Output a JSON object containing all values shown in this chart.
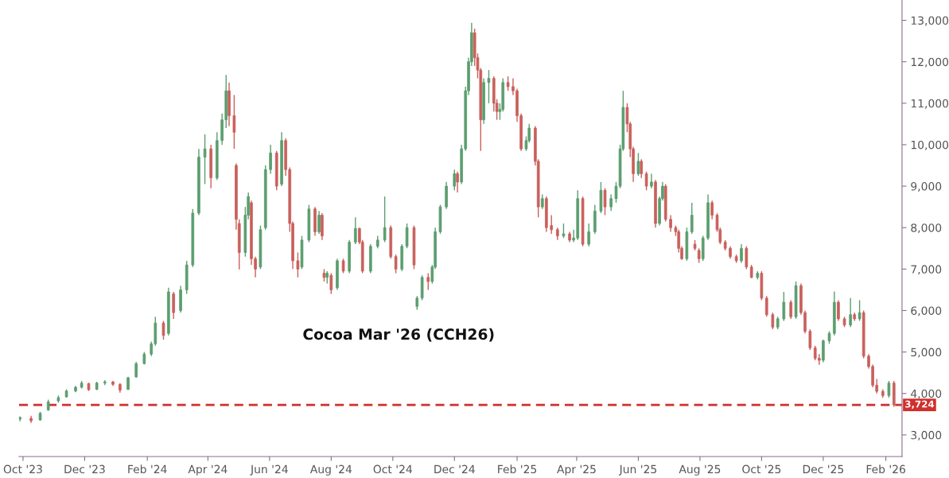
{
  "chart_data": {
    "type": "candlestick",
    "title": "Cocoa Mar '26 (CCH26)",
    "x": [
      "2023-09-28",
      "2023-10-09",
      "2023-10-18",
      "2023-10-26",
      "2023-11-05",
      "2023-11-13",
      "2023-11-22",
      "2023-11-28",
      "2023-12-05",
      "2023-12-13",
      "2023-12-21",
      "2023-12-29",
      "2024-01-05",
      "2024-01-13",
      "2024-01-21",
      "2024-01-29",
      "2024-02-05",
      "2024-02-09",
      "2024-02-17",
      "2024-02-22",
      "2024-02-27",
      "2024-03-05",
      "2024-03-11",
      "2024-03-17",
      "2024-03-23",
      "2024-03-29",
      "2024-04-04",
      "2024-04-10",
      "2024-04-15",
      "2024-04-19",
      "2024-04-22",
      "2024-04-27",
      "2024-04-29",
      "2024-05-02",
      "2024-05-08",
      "2024-05-11",
      "2024-05-14",
      "2024-05-18",
      "2024-05-23",
      "2024-05-28",
      "2024-06-02",
      "2024-06-08",
      "2024-06-13",
      "2024-06-17",
      "2024-06-21",
      "2024-06-24",
      "2024-06-29",
      "2024-07-03",
      "2024-07-10",
      "2024-07-16",
      "2024-07-20",
      "2024-07-23",
      "2024-07-25",
      "2024-07-28",
      "2024-08-01",
      "2024-08-07",
      "2024-08-13",
      "2024-08-19",
      "2024-08-25",
      "2024-08-29",
      "2024-09-01",
      "2024-09-09",
      "2024-09-16",
      "2024-09-23",
      "2024-09-29",
      "2024-10-04",
      "2024-10-10",
      "2024-10-15",
      "2024-10-22",
      "2024-10-25",
      "2024-10-30",
      "2024-11-05",
      "2024-11-09",
      "2024-11-12",
      "2024-11-17",
      "2024-11-23",
      "2024-12-01",
      "2024-12-04",
      "2024-12-08",
      "2024-12-12",
      "2024-12-15",
      "2024-12-18",
      "2024-12-21",
      "2024-12-24",
      "2024-12-27",
      "2024-12-30",
      "2025-01-04",
      "2025-01-09",
      "2025-01-12",
      "2025-01-15",
      "2025-01-18",
      "2025-01-23",
      "2025-01-28",
      "2025-02-01",
      "2025-02-05",
      "2025-02-10",
      "2025-02-13",
      "2025-02-19",
      "2025-02-22",
      "2025-02-26",
      "2025-03-02",
      "2025-03-07",
      "2025-03-13",
      "2025-03-19",
      "2025-03-25",
      "2025-03-29",
      "2025-04-02",
      "2025-04-07",
      "2025-04-13",
      "2025-04-19",
      "2025-04-25",
      "2025-04-29",
      "2025-05-05",
      "2025-05-10",
      "2025-05-14",
      "2025-05-17",
      "2025-05-21",
      "2025-05-24",
      "2025-05-27",
      "2025-06-01",
      "2025-06-04",
      "2025-06-09",
      "2025-06-14",
      "2025-06-18",
      "2025-06-22",
      "2025-06-25",
      "2025-06-28",
      "2025-07-03",
      "2025-07-08",
      "2025-07-11",
      "2025-07-14",
      "2025-07-19",
      "2025-07-24",
      "2025-07-27",
      "2025-07-31",
      "2025-08-04",
      "2025-08-09",
      "2025-08-13",
      "2025-08-18",
      "2025-08-21",
      "2025-08-26",
      "2025-08-31",
      "2025-09-06",
      "2025-09-11",
      "2025-09-16",
      "2025-09-21",
      "2025-09-27",
      "2025-10-01",
      "2025-10-06",
      "2025-10-12",
      "2025-10-17",
      "2025-10-23",
      "2025-10-30",
      "2025-11-04",
      "2025-11-09",
      "2025-11-13",
      "2025-11-18",
      "2025-11-23",
      "2025-11-27",
      "2025-12-01",
      "2025-12-07",
      "2025-12-12",
      "2025-12-16",
      "2025-12-22",
      "2025-12-28",
      "2026-01-01",
      "2026-01-06",
      "2026-01-10",
      "2026-01-15",
      "2026-01-19",
      "2026-01-23",
      "2026-01-29",
      "2026-02-04",
      "2026-02-09"
    ],
    "ohlc": [
      [
        3380,
        3450,
        3330,
        3420
      ],
      [
        3400,
        3460,
        3290,
        3340
      ],
      [
        3360,
        3560,
        3340,
        3520
      ],
      [
        3600,
        3850,
        3580,
        3800
      ],
      [
        3820,
        3950,
        3780,
        3900
      ],
      [
        3920,
        4100,
        3900,
        4060
      ],
      [
        4060,
        4180,
        4030,
        4150
      ],
      [
        4150,
        4300,
        4120,
        4250
      ],
      [
        4240,
        4260,
        4060,
        4090
      ],
      [
        4100,
        4280,
        4080,
        4250
      ],
      [
        4250,
        4320,
        4200,
        4280
      ],
      [
        4280,
        4300,
        4180,
        4220
      ],
      [
        4220,
        4250,
        4020,
        4080
      ],
      [
        4100,
        4400,
        4080,
        4380
      ],
      [
        4400,
        4760,
        4380,
        4720
      ],
      [
        4720,
        5000,
        4700,
        4950
      ],
      [
        4950,
        5250,
        4900,
        5200
      ],
      [
        5200,
        5850,
        5150,
        5700
      ],
      [
        5700,
        5750,
        5300,
        5400
      ],
      [
        5450,
        6550,
        5400,
        6450
      ],
      [
        6400,
        6450,
        5800,
        5950
      ],
      [
        6000,
        6600,
        5950,
        6500
      ],
      [
        6500,
        7200,
        6400,
        7100
      ],
      [
        7100,
        8450,
        7050,
        8350
      ],
      [
        8350,
        9900,
        8300,
        9700
      ],
      [
        9700,
        10250,
        9050,
        9900
      ],
      [
        9900,
        10000,
        8950,
        9200
      ],
      [
        9200,
        10300,
        9150,
        10100
      ],
      [
        10100,
        10750,
        10000,
        10600
      ],
      [
        10600,
        11680,
        10400,
        11300
      ],
      [
        11300,
        11500,
        10450,
        10700
      ],
      [
        10700,
        11200,
        9900,
        10300
      ],
      [
        9500,
        9550,
        7950,
        8200
      ],
      [
        8100,
        8200,
        6990,
        7400
      ],
      [
        7400,
        8500,
        7300,
        8300
      ],
      [
        8300,
        8850,
        8200,
        8750
      ],
      [
        8600,
        8650,
        7100,
        7250
      ],
      [
        7250,
        7300,
        6800,
        7000
      ],
      [
        7050,
        8050,
        7000,
        7950
      ],
      [
        8000,
        9500,
        7950,
        9400
      ],
      [
        9400,
        10000,
        9300,
        9800
      ],
      [
        9800,
        9850,
        8900,
        9000
      ],
      [
        9050,
        10300,
        9000,
        10100
      ],
      [
        10100,
        10150,
        9250,
        9400
      ],
      [
        9400,
        9450,
        7900,
        8100
      ],
      [
        8100,
        8150,
        7000,
        7200
      ],
      [
        7200,
        7400,
        6800,
        7000
      ],
      [
        7050,
        7800,
        7000,
        7700
      ],
      [
        7700,
        8550,
        7650,
        8450
      ],
      [
        8450,
        8500,
        7800,
        7900
      ],
      [
        7900,
        8400,
        7850,
        8300
      ],
      [
        8300,
        8350,
        7700,
        7800
      ],
      [
        6900,
        7000,
        6700,
        6800
      ],
      [
        6800,
        6950,
        6650,
        6900
      ],
      [
        6850,
        6900,
        6400,
        6500
      ],
      [
        6550,
        7250,
        6500,
        7200
      ],
      [
        7200,
        7250,
        6900,
        6950
      ],
      [
        6950,
        7700,
        6900,
        7650
      ],
      [
        7650,
        8250,
        7600,
        7980
      ],
      [
        7980,
        8000,
        7600,
        7650
      ],
      [
        7650,
        7700,
        6900,
        6950
      ],
      [
        6950,
        7600,
        6900,
        7550
      ],
      [
        7550,
        7800,
        7500,
        7700
      ],
      [
        7700,
        8750,
        7650,
        8000
      ],
      [
        8000,
        8050,
        7250,
        7300
      ],
      [
        7300,
        7350,
        6900,
        7000
      ],
      [
        7000,
        7600,
        6950,
        7550
      ],
      [
        7550,
        8100,
        7500,
        8000
      ],
      [
        8000,
        8050,
        7000,
        7100
      ],
      [
        6100,
        6350,
        6020,
        6300
      ],
      [
        6300,
        6850,
        6250,
        6800
      ],
      [
        6800,
        6900,
        6500,
        6700
      ],
      [
        6700,
        7100,
        6650,
        7050
      ],
      [
        7050,
        8000,
        7000,
        7900
      ],
      [
        7900,
        8550,
        7850,
        8500
      ],
      [
        8500,
        9100,
        8450,
        9000
      ],
      [
        9000,
        9400,
        8900,
        9300
      ],
      [
        9300,
        9350,
        8850,
        9100
      ],
      [
        9100,
        10000,
        9050,
        9900
      ],
      [
        9900,
        11400,
        9850,
        11300
      ],
      [
        11300,
        12100,
        11200,
        12000
      ],
      [
        12000,
        12940,
        11900,
        12700
      ],
      [
        12700,
        12800,
        11900,
        12100
      ],
      [
        12100,
        12200,
        11600,
        11800
      ],
      [
        11800,
        11850,
        9850,
        10600
      ],
      [
        10600,
        11600,
        10500,
        11500
      ],
      [
        11500,
        11800,
        11000,
        11600
      ],
      [
        11600,
        11650,
        10800,
        11000
      ],
      [
        11000,
        11100,
        10600,
        10800
      ],
      [
        10800,
        11000,
        10600,
        10850
      ],
      [
        10850,
        11600,
        10800,
        11500
      ],
      [
        11500,
        11650,
        11300,
        11400
      ],
      [
        11400,
        11600,
        11200,
        11300
      ],
      [
        11300,
        11350,
        10550,
        10700
      ],
      [
        10700,
        10750,
        9850,
        9900
      ],
      [
        9900,
        10200,
        9850,
        10100
      ],
      [
        10100,
        10500,
        10050,
        10400
      ],
      [
        10400,
        10450,
        9500,
        9600
      ],
      [
        9600,
        9650,
        8250,
        8500
      ],
      [
        8500,
        8800,
        8450,
        8700
      ],
      [
        8700,
        8750,
        7900,
        8000
      ],
      [
        8050,
        8300,
        7850,
        7950
      ],
      [
        7950,
        8000,
        7700,
        7800
      ],
      [
        7800,
        8100,
        7750,
        7850
      ],
      [
        7850,
        7900,
        7650,
        7700
      ],
      [
        7700,
        7950,
        7650,
        7750
      ],
      [
        7750,
        8900,
        7700,
        8700
      ],
      [
        8700,
        8750,
        7550,
        7600
      ],
      [
        7600,
        8100,
        7550,
        7900
      ],
      [
        7900,
        8550,
        7850,
        8400
      ],
      [
        8400,
        9100,
        8350,
        8900
      ],
      [
        8900,
        8950,
        8300,
        8500
      ],
      [
        8500,
        8800,
        8400,
        8700
      ],
      [
        8700,
        9100,
        8600,
        9000
      ],
      [
        9000,
        10000,
        8950,
        9900
      ],
      [
        9900,
        11300,
        9850,
        10900
      ],
      [
        10900,
        11000,
        10300,
        10500
      ],
      [
        10500,
        10550,
        9700,
        9900
      ],
      [
        9900,
        9950,
        9100,
        9300
      ],
      [
        9300,
        9800,
        9250,
        9600
      ],
      [
        9600,
        9650,
        9200,
        9300
      ],
      [
        9300,
        9350,
        8900,
        9000
      ],
      [
        9000,
        9300,
        8950,
        9100
      ],
      [
        9100,
        9150,
        8000,
        8100
      ],
      [
        8100,
        8750,
        8050,
        8700
      ],
      [
        8700,
        9100,
        8650,
        9000
      ],
      [
        9000,
        9050,
        8150,
        8200
      ],
      [
        8200,
        8300,
        7900,
        8000
      ],
      [
        8000,
        8050,
        7800,
        7900
      ],
      [
        7900,
        7950,
        7400,
        7500
      ],
      [
        7500,
        7550,
        7220,
        7250
      ],
      [
        7250,
        8000,
        7200,
        7900
      ],
      [
        7900,
        8600,
        7850,
        8300
      ],
      [
        7600,
        7700,
        7450,
        7500
      ],
      [
        7450,
        7500,
        7150,
        7250
      ],
      [
        7250,
        7800,
        7200,
        7750
      ],
      [
        7750,
        8800,
        7700,
        8600
      ],
      [
        8600,
        8650,
        8200,
        8300
      ],
      [
        8300,
        8350,
        7900,
        7950
      ],
      [
        7950,
        8000,
        7600,
        7650
      ],
      [
        7650,
        7700,
        7450,
        7500
      ],
      [
        7500,
        7550,
        7250,
        7300
      ],
      [
        7300,
        7350,
        7150,
        7200
      ],
      [
        7200,
        7600,
        7150,
        7500
      ],
      [
        7500,
        7550,
        7000,
        7050
      ],
      [
        7050,
        7100,
        6780,
        6800
      ],
      [
        6800,
        6950,
        6750,
        6900
      ],
      [
        6900,
        6950,
        6250,
        6300
      ],
      [
        6300,
        6350,
        5850,
        5900
      ],
      [
        5900,
        5950,
        5550,
        5600
      ],
      [
        5600,
        5850,
        5550,
        5800
      ],
      [
        5800,
        6450,
        5750,
        6200
      ],
      [
        6200,
        6250,
        5800,
        5850
      ],
      [
        5850,
        6700,
        5800,
        6600
      ],
      [
        6600,
        6650,
        5900,
        5950
      ],
      [
        5950,
        6000,
        5450,
        5500
      ],
      [
        5500,
        5550,
        5050,
        5100
      ],
      [
        5100,
        5150,
        4800,
        4850
      ],
      [
        4850,
        4950,
        4690,
        4800
      ],
      [
        4800,
        5300,
        4750,
        5270
      ],
      [
        5270,
        5500,
        5200,
        5450
      ],
      [
        5450,
        6460,
        5400,
        6200
      ],
      [
        6200,
        6250,
        5750,
        5800
      ],
      [
        5800,
        5850,
        5600,
        5650
      ],
      [
        5650,
        6300,
        5600,
        5900
      ],
      [
        5900,
        5950,
        5750,
        5800
      ],
      [
        5800,
        6250,
        5750,
        5950
      ],
      [
        5950,
        6000,
        4850,
        4900
      ],
      [
        4900,
        4950,
        4600,
        4650
      ],
      [
        4650,
        4700,
        4150,
        4200
      ],
      [
        4200,
        4350,
        4000,
        4050
      ],
      [
        4050,
        4100,
        3900,
        3950
      ],
      [
        3950,
        4300,
        3900,
        4250
      ],
      [
        4250,
        4300,
        3680,
        3724
      ]
    ],
    "colors": [
      "#5b9e6f",
      "#c9605c",
      "#5b9e6f",
      "#5b9e6f",
      "#5b9e6f",
      "#5b9e6f",
      "#5b9e6f",
      "#5b9e6f",
      "#c9605c",
      "#5b9e6f",
      "#5b9e6f",
      "#c9605c",
      "#c9605c",
      "#5b9e6f",
      "#5b9e6f",
      "#5b9e6f",
      "#5b9e6f",
      "#5b9e6f",
      "#c9605c",
      "#5b9e6f",
      "#c9605c",
      "#5b9e6f",
      "#5b9e6f",
      "#5b9e6f",
      "#5b9e6f",
      "#5b9e6f",
      "#c9605c",
      "#5b9e6f",
      "#5b9e6f",
      "#5b9e6f",
      "#c9605c",
      "#c9605c",
      "#c9605c",
      "#c9605c",
      "#5b9e6f",
      "#5b9e6f",
      "#c9605c",
      "#c9605c",
      "#5b9e6f",
      "#5b9e6f",
      "#5b9e6f",
      "#c9605c",
      "#5b9e6f",
      "#c9605c",
      "#c9605c",
      "#c9605c",
      "#c9605c",
      "#5b9e6f",
      "#5b9e6f",
      "#c9605c",
      "#5b9e6f",
      "#c9605c",
      "#c9605c",
      "#5b9e6f",
      "#c9605c",
      "#5b9e6f",
      "#c9605c",
      "#5b9e6f",
      "#5b9e6f",
      "#c9605c",
      "#c9605c",
      "#5b9e6f",
      "#5b9e6f",
      "#5b9e6f",
      "#c9605c",
      "#c9605c",
      "#5b9e6f",
      "#5b9e6f",
      "#c9605c",
      "#5b9e6f",
      "#5b9e6f",
      "#c9605c",
      "#5b9e6f",
      "#5b9e6f",
      "#5b9e6f",
      "#5b9e6f",
      "#5b9e6f",
      "#c9605c",
      "#5b9e6f",
      "#5b9e6f",
      "#5b9e6f",
      "#5b9e6f",
      "#c9605c",
      "#c9605c",
      "#c9605c",
      "#5b9e6f",
      "#5b9e6f",
      "#c9605c",
      "#c9605c",
      "#5b9e6f",
      "#5b9e6f",
      "#c9605c",
      "#c9605c",
      "#c9605c",
      "#c9605c",
      "#5b9e6f",
      "#5b9e6f",
      "#c9605c",
      "#c9605c",
      "#5b9e6f",
      "#c9605c",
      "#c9605c",
      "#c9605c",
      "#5b9e6f",
      "#c9605c",
      "#5b9e6f",
      "#5b9e6f",
      "#c9605c",
      "#5b9e6f",
      "#5b9e6f",
      "#5b9e6f",
      "#c9605c",
      "#5b9e6f",
      "#5b9e6f",
      "#5b9e6f",
      "#5b9e6f",
      "#c9605c",
      "#c9605c",
      "#c9605c",
      "#5b9e6f",
      "#c9605c",
      "#c9605c",
      "#5b9e6f",
      "#c9605c",
      "#5b9e6f",
      "#5b9e6f",
      "#c9605c",
      "#c9605c",
      "#c9605c",
      "#c9605c",
      "#c9605c",
      "#5b9e6f",
      "#5b9e6f",
      "#c9605c",
      "#c9605c",
      "#5b9e6f",
      "#5b9e6f",
      "#c9605c",
      "#c9605c",
      "#c9605c",
      "#c9605c",
      "#c9605c",
      "#c9605c",
      "#5b9e6f",
      "#c9605c",
      "#c9605c",
      "#5b9e6f",
      "#c9605c",
      "#c9605c",
      "#c9605c",
      "#5b9e6f",
      "#5b9e6f",
      "#c9605c",
      "#5b9e6f",
      "#c9605c",
      "#c9605c",
      "#c9605c",
      "#c9605c",
      "#c9605c",
      "#5b9e6f",
      "#5b9e6f",
      "#5b9e6f",
      "#c9605c",
      "#c9605c",
      "#5b9e6f",
      "#c9605c",
      "#5b9e6f",
      "#c9605c",
      "#c9605c",
      "#c9605c",
      "#c9605c",
      "#c9605c",
      "#5b9e6f",
      "#c9605c"
    ],
    "xlim": [
      "2023-09-27",
      "2026-02-17"
    ],
    "xticks": [
      {
        "value": "2023-10-01",
        "label": "Oct '23"
      },
      {
        "value": "2023-12-01",
        "label": "Dec '23"
      },
      {
        "value": "2024-02-01",
        "label": "Feb '24"
      },
      {
        "value": "2024-04-01",
        "label": "Apr '24"
      },
      {
        "value": "2024-06-01",
        "label": "Jun '24"
      },
      {
        "value": "2024-08-01",
        "label": "Aug '24"
      },
      {
        "value": "2024-10-01",
        "label": "Oct '24"
      },
      {
        "value": "2024-12-01",
        "label": "Dec '24"
      },
      {
        "value": "2025-02-01",
        "label": "Feb '25"
      },
      {
        "value": "2025-04-01",
        "label": "Apr '25"
      },
      {
        "value": "2025-06-01",
        "label": "Jun '25"
      },
      {
        "value": "2025-08-01",
        "label": "Aug '25"
      },
      {
        "value": "2025-10-01",
        "label": "Oct '25"
      },
      {
        "value": "2025-12-01",
        "label": "Dec '25"
      },
      {
        "value": "2026-02-01",
        "label": "Feb '26"
      }
    ],
    "ylim": [
      2480,
      13490
    ],
    "yticks": [
      {
        "value": 3000,
        "label": "3,000"
      },
      {
        "value": 4000,
        "label": "4,000"
      },
      {
        "value": 5000,
        "label": "5,000"
      },
      {
        "value": 6000,
        "label": "6,000"
      },
      {
        "value": 7000,
        "label": "7,000"
      },
      {
        "value": 8000,
        "label": "8,000"
      },
      {
        "value": 9000,
        "label": "9,000"
      },
      {
        "value": 10000,
        "label": "10,000"
      },
      {
        "value": 11000,
        "label": "11,000"
      },
      {
        "value": 12000,
        "label": "12,000"
      },
      {
        "value": 13000,
        "label": "13,000"
      }
    ],
    "ref_lines": [
      {
        "axis": "y",
        "value": 3724,
        "label": "3,724",
        "color": "#d0312d",
        "line_style": "dashed"
      }
    ],
    "grid": false,
    "legend": false
  }
}
